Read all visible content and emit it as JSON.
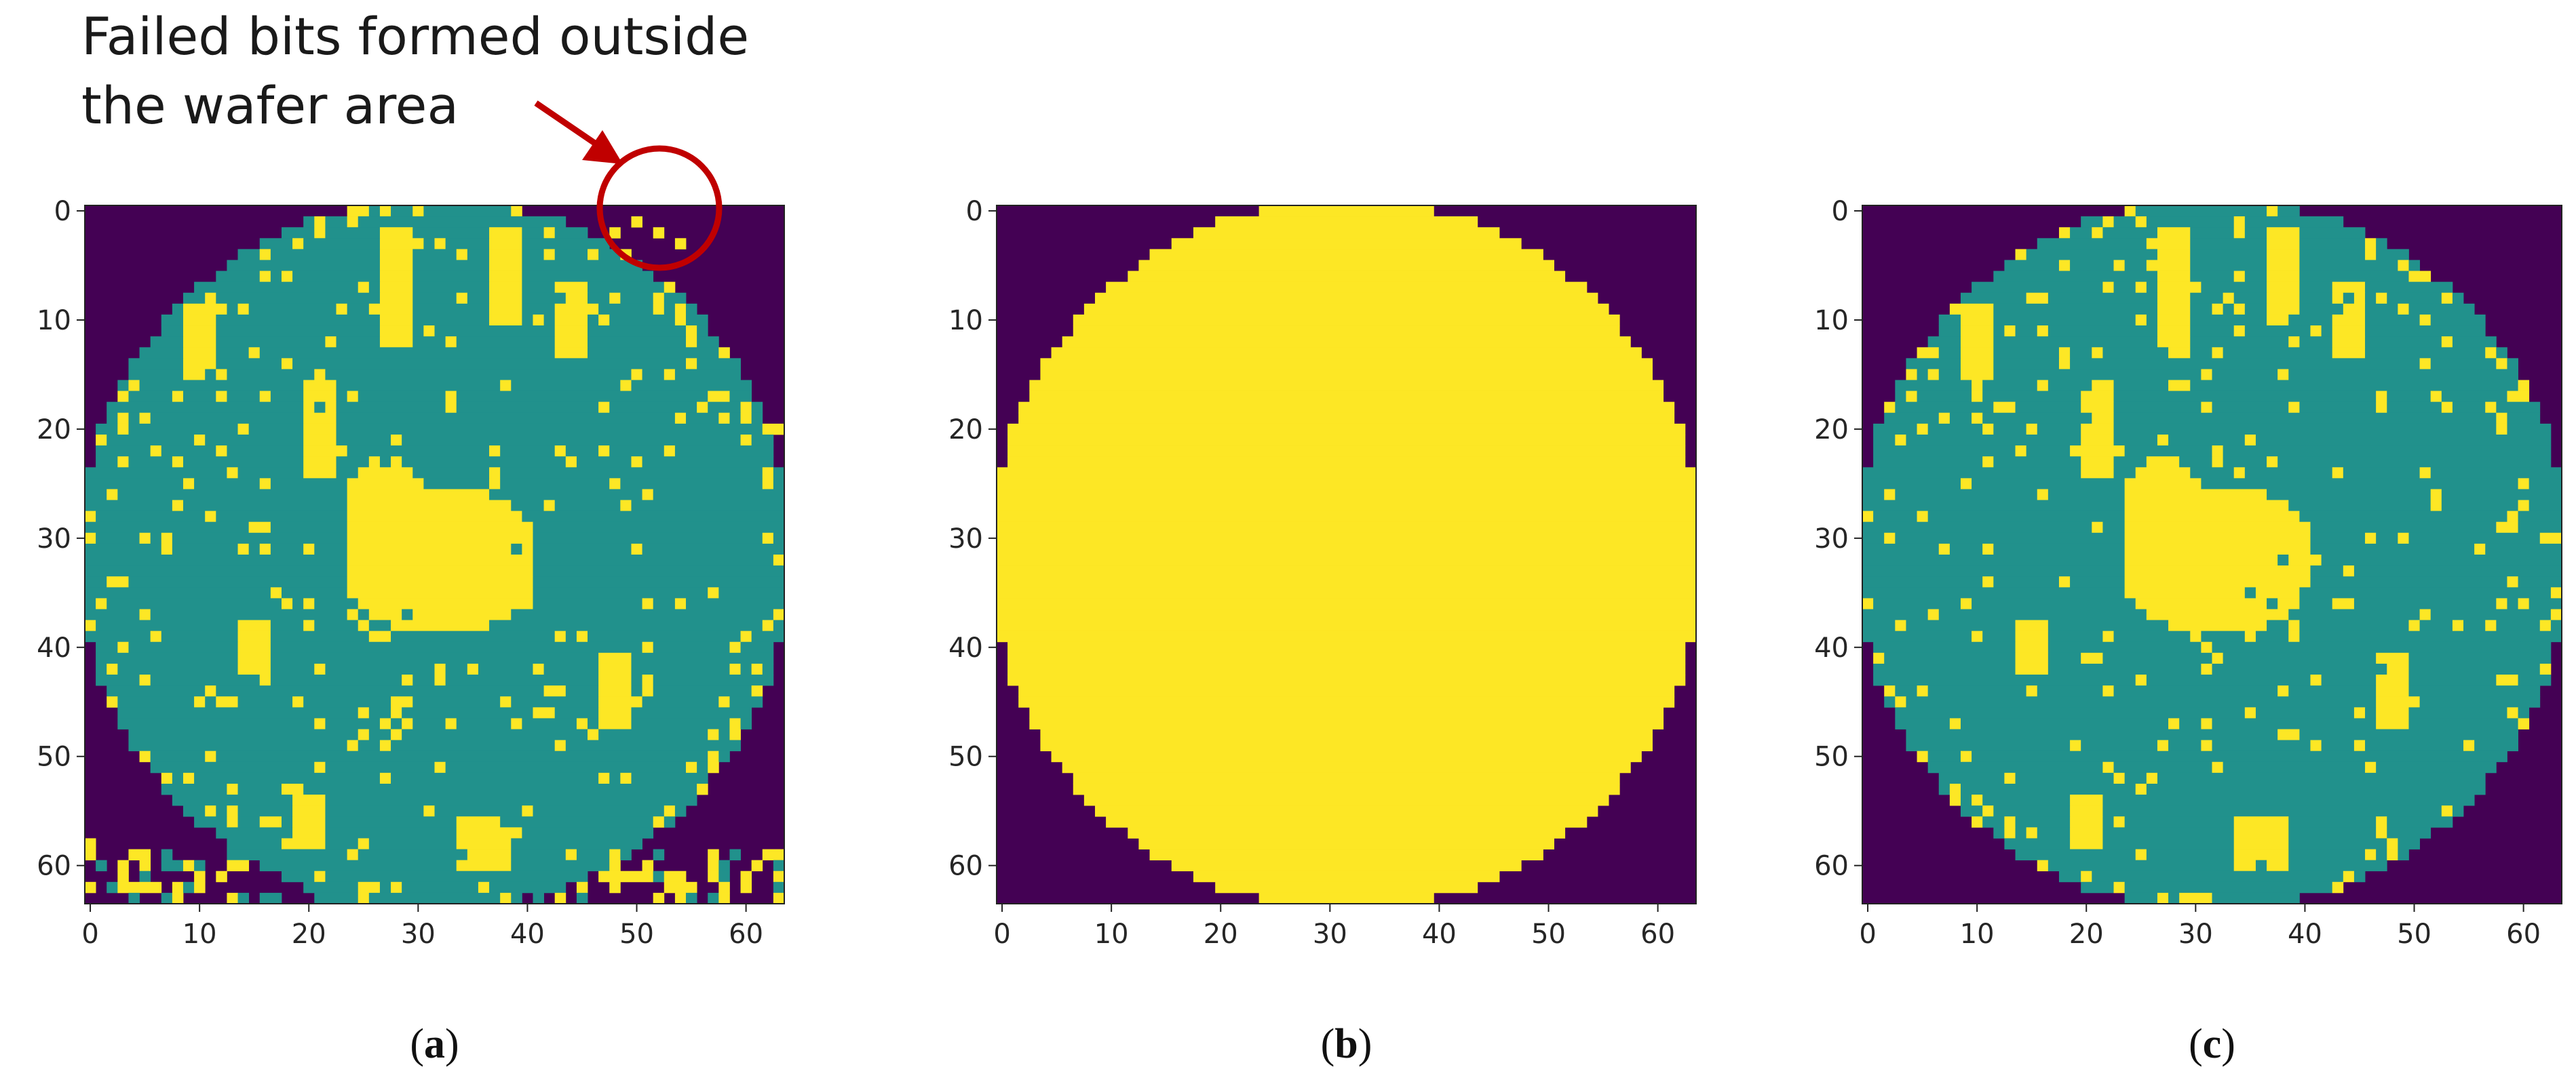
{
  "annotation": {
    "line1": "Failed bits formed outside",
    "line2": "the wafer area",
    "color": "#c00000"
  },
  "colors": {
    "background": "#440154",
    "pass": "#21918c",
    "fail": "#fde725"
  },
  "chart_data": [
    {
      "type": "heatmap",
      "caption": {
        "open": "(",
        "letter": "a",
        "close": ")"
      },
      "grid_size": 64,
      "x_ticks": [
        "0",
        "10",
        "20",
        "30",
        "40",
        "50",
        "60"
      ],
      "y_ticks": [
        "0",
        "10",
        "20",
        "30",
        "40",
        "50",
        "60"
      ],
      "xlim": [
        -0.5,
        63.5
      ],
      "ylim": [
        63.5,
        -0.5
      ],
      "description_values": {
        "0": "background",
        "1": "pass",
        "2": "fail"
      },
      "wafer_center": [
        31.5,
        31.5
      ],
      "wafer_radius": 32.6,
      "fail_blobs": [
        {
          "cx": 32,
          "cy": 32,
          "rx": 9,
          "ry": 7
        },
        {
          "cx": 27,
          "cy": 30,
          "rx": 4,
          "ry": 8
        },
        {
          "cx": 28,
          "cy": 7,
          "rx": 2,
          "ry": 6
        },
        {
          "cx": 38,
          "cy": 6,
          "rx": 2,
          "ry": 5
        },
        {
          "cx": 44,
          "cy": 10,
          "rx": 2,
          "ry": 4
        },
        {
          "cx": 21,
          "cy": 20,
          "rx": 2,
          "ry": 5
        },
        {
          "cx": 10,
          "cy": 12,
          "rx": 2,
          "ry": 4
        },
        {
          "cx": 48,
          "cy": 44,
          "rx": 2,
          "ry": 4
        },
        {
          "cx": 15,
          "cy": 40,
          "rx": 2,
          "ry": 3
        },
        {
          "cx": 36,
          "cy": 58,
          "rx": 3,
          "ry": 3
        },
        {
          "cx": 20,
          "cy": 56,
          "rx": 2,
          "ry": 3
        }
      ],
      "outside_fail_cells": [
        [
          52,
          2
        ],
        [
          54,
          3
        ],
        [
          50,
          1
        ],
        [
          48,
          2
        ],
        [
          2,
          34
        ],
        [
          1,
          36
        ],
        [
          0,
          38
        ],
        [
          3,
          40
        ],
        [
          63,
          20
        ],
        [
          62,
          25
        ],
        [
          0,
          58
        ],
        [
          5,
          60
        ]
      ],
      "bottom_edge_noise": true,
      "fail_density": 0.06
    },
    {
      "type": "heatmap",
      "caption": {
        "open": "(",
        "letter": "b",
        "close": ")"
      },
      "grid_size": 64,
      "x_ticks": [
        "0",
        "10",
        "20",
        "30",
        "40",
        "50",
        "60"
      ],
      "y_ticks": [
        "0",
        "10",
        "20",
        "30",
        "40",
        "50",
        "60"
      ],
      "xlim": [
        -0.5,
        63.5
      ],
      "ylim": [
        63.5,
        -0.5
      ],
      "description_values": {
        "0": "background",
        "2": "wafer"
      },
      "wafer_center": [
        31.5,
        31.5
      ],
      "wafer_radius": 32.6
    },
    {
      "type": "heatmap",
      "caption": {
        "open": "(",
        "letter": "c",
        "close": ")"
      },
      "grid_size": 64,
      "x_ticks": [
        "0",
        "10",
        "20",
        "30",
        "40",
        "50",
        "60"
      ],
      "y_ticks": [
        "0",
        "10",
        "20",
        "30",
        "40",
        "50",
        "60"
      ],
      "xlim": [
        -0.5,
        63.5
      ],
      "ylim": [
        63.5,
        -0.5
      ],
      "description_values": {
        "0": "background",
        "1": "pass",
        "2": "fail"
      },
      "wafer_center": [
        31.5,
        31.5
      ],
      "wafer_radius": 32.6,
      "fail_blobs": [
        {
          "cx": 32,
          "cy": 32,
          "rx": 9,
          "ry": 7
        },
        {
          "cx": 27,
          "cy": 30,
          "rx": 4,
          "ry": 8
        },
        {
          "cx": 28,
          "cy": 7,
          "rx": 2,
          "ry": 6
        },
        {
          "cx": 38,
          "cy": 6,
          "rx": 2,
          "ry": 5
        },
        {
          "cx": 44,
          "cy": 10,
          "rx": 2,
          "ry": 4
        },
        {
          "cx": 21,
          "cy": 20,
          "rx": 2,
          "ry": 5
        },
        {
          "cx": 10,
          "cy": 12,
          "rx": 2,
          "ry": 4
        },
        {
          "cx": 48,
          "cy": 44,
          "rx": 2,
          "ry": 4
        },
        {
          "cx": 15,
          "cy": 40,
          "rx": 2,
          "ry": 3
        },
        {
          "cx": 36,
          "cy": 58,
          "rx": 3,
          "ry": 3
        },
        {
          "cx": 20,
          "cy": 56,
          "rx": 2,
          "ry": 3
        }
      ],
      "fail_density": 0.06
    }
  ]
}
